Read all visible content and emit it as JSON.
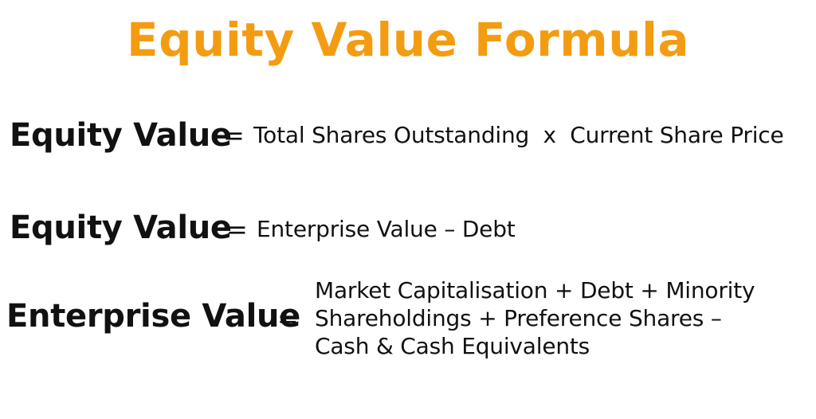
{
  "title": {
    "text": "Equity Value Formula",
    "color": "#F39C12"
  },
  "formulas": [
    {
      "lhs": "Equity Value",
      "operator": "=",
      "rhs": "Total Shares Outstanding  x  Current Share Price"
    },
    {
      "lhs": "Equity Value",
      "operator": "=",
      "rhs": "Enterprise Value – Debt"
    },
    {
      "lhs": "Enterprise Value",
      "operator": "=",
      "rhs_lines": [
        "Market Capitalisation + Debt + Minority",
        "Shareholdings + Preference Shares –",
        "Cash & Cash Equivalents"
      ]
    }
  ]
}
